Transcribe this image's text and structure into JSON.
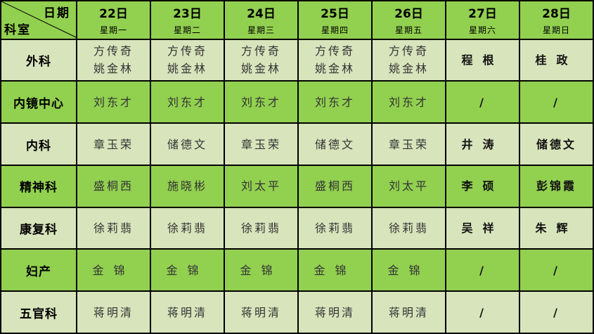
{
  "corner": {
    "date_label": "日期",
    "dept_label": "科室"
  },
  "days": [
    {
      "date": "22日",
      "weekday": "星期一"
    },
    {
      "date": "23日",
      "weekday": "星期二"
    },
    {
      "date": "24日",
      "weekday": "星期三"
    },
    {
      "date": "25日",
      "weekday": "星期四"
    },
    {
      "date": "26日",
      "weekday": "星期五"
    },
    {
      "date": "27日",
      "weekday": "星期六"
    },
    {
      "date": "28日",
      "weekday": "星期日"
    }
  ],
  "colors": {
    "header": "#92d050",
    "light_row": "#d8e4bc",
    "green_row": "#92d050"
  },
  "rows": [
    {
      "dept": "外科",
      "cells": [
        [
          "方传奇",
          "姚金林"
        ],
        [
          "方传奇",
          "姚金林"
        ],
        [
          "方传奇",
          "姚金林"
        ],
        [
          "方传奇",
          "姚金林"
        ],
        [
          "方传奇",
          "姚金林"
        ],
        [
          "程根"
        ],
        [
          "桂政"
        ]
      ]
    },
    {
      "dept": "内镜中心",
      "cells": [
        [
          "刘东才"
        ],
        [
          "刘东才"
        ],
        [
          "刘东才"
        ],
        [
          "刘东才"
        ],
        [
          "刘东才"
        ],
        [
          "/"
        ],
        [
          "/"
        ]
      ]
    },
    {
      "dept": "内科",
      "cells": [
        [
          "章玉荣"
        ],
        [
          "储德文"
        ],
        [
          "章玉荣"
        ],
        [
          "储德文"
        ],
        [
          "章玉荣"
        ],
        [
          "井涛"
        ],
        [
          "储德文"
        ]
      ]
    },
    {
      "dept": "精神科",
      "cells": [
        [
          "盛桐西"
        ],
        [
          "施晓彬"
        ],
        [
          "刘太平"
        ],
        [
          "盛桐西"
        ],
        [
          "刘太平"
        ],
        [
          "李硕"
        ],
        [
          "彭锦霞"
        ]
      ]
    },
    {
      "dept": "康复科",
      "cells": [
        [
          "徐莉翡"
        ],
        [
          "徐莉翡"
        ],
        [
          "徐莉翡"
        ],
        [
          "徐莉翡"
        ],
        [
          "徐莉翡"
        ],
        [
          "吴祥"
        ],
        [
          "朱辉"
        ]
      ]
    },
    {
      "dept": "妇产",
      "cells": [
        [
          "金锦"
        ],
        [
          "金锦"
        ],
        [
          "金锦"
        ],
        [
          "金锦"
        ],
        [
          "金锦"
        ],
        [
          "/"
        ],
        [
          "/"
        ]
      ]
    },
    {
      "dept": "五官科",
      "cells": [
        [
          "蒋明清"
        ],
        [
          "蒋明清"
        ],
        [
          "蒋明清"
        ],
        [
          "蒋明清"
        ],
        [
          "蒋明清"
        ],
        [
          "/"
        ],
        [
          "/"
        ]
      ]
    }
  ]
}
